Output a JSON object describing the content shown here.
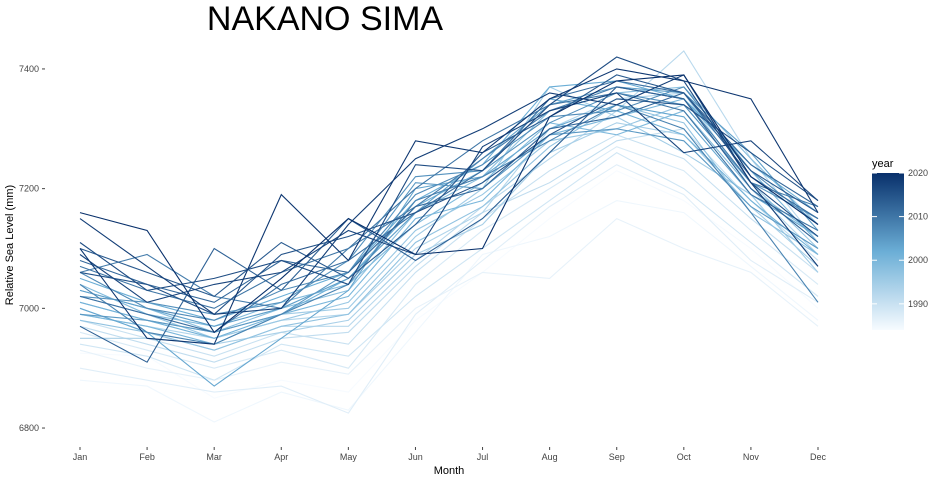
{
  "chart_data": {
    "type": "line",
    "title": "NAKANO SIMA",
    "xlabel": "Month",
    "ylabel": "Relative Sea Level (mm)",
    "categories": [
      "Jan",
      "Feb",
      "Mar",
      "Apr",
      "May",
      "Jun",
      "Jul",
      "Aug",
      "Sep",
      "Oct",
      "Nov",
      "Dec"
    ],
    "ylim": [
      6780,
      7440
    ],
    "yticks": [
      6800,
      7000,
      7200,
      7400
    ],
    "grid": false,
    "legend": {
      "title": "year",
      "placement": "right",
      "type": "colorbar",
      "range": [
        1984,
        2020
      ],
      "ticks": [
        1990,
        2000,
        2010,
        2020
      ],
      "color_low": "#f7fbff",
      "color_high": "#08306b"
    },
    "series": [
      {
        "year": 1984,
        "values": [
          6925,
          6920,
          6850,
          6880,
          6860,
          6980,
          7060,
          7150,
          7230,
          7180,
          7100,
          7000
        ]
      },
      {
        "year": 1985,
        "values": [
          6880,
          6870,
          6810,
          6860,
          6830,
          6960,
          7090,
          7120,
          7180,
          7160,
          7070,
          6980
        ]
      },
      {
        "year": 1986,
        "values": [
          6930,
          6900,
          6880,
          6910,
          6890,
          7000,
          7060,
          7050,
          7150,
          7100,
          7060,
          6970
        ]
      },
      {
        "year": 1987,
        "values": [
          6900,
          6880,
          6860,
          6870,
          6825,
          6990,
          7080,
          7170,
          7240,
          7190,
          7080,
          7010
        ]
      },
      {
        "year": 1988,
        "values": [
          6960,
          6930,
          6900,
          6930,
          6900,
          7040,
          7130,
          7200,
          7270,
          7230,
          7130,
          7040
        ]
      },
      {
        "year": 1989,
        "values": [
          6940,
          6920,
          6880,
          6940,
          6920,
          7020,
          7100,
          7180,
          7260,
          7200,
          7110,
          7020
        ]
      },
      {
        "year": 1990,
        "values": [
          6980,
          6950,
          6920,
          6960,
          6940,
          7060,
          7150,
          7230,
          7290,
          7250,
          7150,
          7060
        ]
      },
      {
        "year": 1991,
        "values": [
          6970,
          6940,
          6910,
          6950,
          6960,
          7070,
          7160,
          7210,
          7280,
          7300,
          7180,
          7080
        ]
      },
      {
        "year": 1992,
        "values": [
          7000,
          6960,
          6930,
          6970,
          6970,
          7080,
          7170,
          7250,
          7330,
          7430,
          7250,
          7110
        ]
      },
      {
        "year": 1993,
        "values": [
          6990,
          6970,
          6950,
          6980,
          6990,
          7100,
          7160,
          7300,
          7350,
          7360,
          7200,
          7090
        ]
      },
      {
        "year": 1994,
        "values": [
          6950,
          6950,
          6940,
          6960,
          6980,
          7090,
          7140,
          7260,
          7310,
          7290,
          7170,
          7070
        ]
      },
      {
        "year": 1995,
        "values": [
          7010,
          6980,
          6960,
          6990,
          7000,
          7120,
          7200,
          7370,
          7320,
          7260,
          7190,
          7060
        ]
      },
      {
        "year": 1996,
        "values": [
          7020,
          6990,
          6950,
          6980,
          7010,
          7130,
          7190,
          7280,
          7300,
          7340,
          7210,
          7100
        ]
      },
      {
        "year": 1997,
        "values": [
          6980,
          6960,
          6930,
          6970,
          6990,
          7110,
          7170,
          7270,
          7340,
          7310,
          7160,
          7090
        ]
      },
      {
        "year": 1998,
        "values": [
          7030,
          7000,
          6960,
          7000,
          7030,
          7160,
          7220,
          7330,
          7360,
          7370,
          7250,
          7140
        ]
      },
      {
        "year": 1999,
        "values": [
          7040,
          6990,
          6970,
          7010,
          7040,
          7140,
          7210,
          7310,
          7290,
          7330,
          7200,
          7120
        ]
      },
      {
        "year": 2000,
        "values": [
          6990,
          6970,
          6940,
          6990,
          7020,
          7150,
          7180,
          7290,
          7320,
          7350,
          7230,
          7110
        ]
      },
      {
        "year": 2001,
        "values": [
          7010,
          6980,
          6950,
          6990,
          7050,
          7170,
          7230,
          7350,
          7330,
          7290,
          7180,
          7090
        ]
      },
      {
        "year": 2002,
        "values": [
          7050,
          7010,
          6980,
          7020,
          7060,
          7180,
          7240,
          7370,
          7380,
          7350,
          7240,
          7160
        ]
      },
      {
        "year": 2003,
        "values": [
          7000,
          6960,
          6870,
          6950,
          7030,
          7200,
          7220,
          7300,
          7340,
          7320,
          7190,
          7120
        ]
      },
      {
        "year": 2004,
        "values": [
          7030,
          7000,
          6970,
          7000,
          7050,
          7160,
          7250,
          7340,
          7370,
          7360,
          7260,
          7130
        ]
      },
      {
        "year": 2005,
        "values": [
          6990,
          6980,
          6960,
          6990,
          7060,
          7210,
          7200,
          7290,
          7300,
          7280,
          7170,
          7100
        ]
      },
      {
        "year": 2006,
        "values": [
          7020,
          7010,
          6990,
          7010,
          7080,
          7220,
          7230,
          7310,
          7360,
          7340,
          7210,
          7150
        ]
      },
      {
        "year": 2007,
        "values": [
          7060,
          7000,
          6980,
          7030,
          7060,
          7190,
          7240,
          7320,
          7330,
          7370,
          7230,
          7140
        ]
      },
      {
        "year": 2008,
        "values": [
          7040,
          6960,
          6940,
          6990,
          7040,
          7180,
          7220,
          7280,
          7340,
          7300,
          7160,
          7010
        ]
      },
      {
        "year": 2009,
        "values": [
          7060,
          7090,
          7020,
          7000,
          7100,
          7170,
          7250,
          7330,
          7370,
          7350,
          7210,
          7170
        ]
      },
      {
        "year": 2010,
        "values": [
          7070,
          7030,
          7000,
          7060,
          7100,
          7200,
          7280,
          7340,
          7360,
          7330,
          7190,
          7130
        ]
      },
      {
        "year": 2011,
        "values": [
          7020,
          6990,
          6960,
          7040,
          7080,
          7160,
          7230,
          7350,
          7380,
          7360,
          7220,
          7150
        ]
      },
      {
        "year": 2012,
        "values": [
          7080,
          7040,
          7010,
          7080,
          7060,
          7170,
          7200,
          7300,
          7320,
          7360,
          7240,
          7170
        ]
      },
      {
        "year": 2013,
        "values": [
          6970,
          6910,
          7100,
          7030,
          7150,
          7080,
          7150,
          7260,
          7370,
          7350,
          7200,
          7110
        ]
      },
      {
        "year": 2014,
        "values": [
          7100,
          7060,
          7020,
          7110,
          7050,
          7140,
          7260,
          7320,
          7390,
          7360,
          7230,
          7160
        ]
      },
      {
        "year": 2015,
        "values": [
          7060,
          7040,
          6990,
          7090,
          7120,
          7160,
          7210,
          7290,
          7350,
          7340,
          7260,
          7180
        ]
      },
      {
        "year": 2016,
        "values": [
          7110,
          7030,
          7050,
          7080,
          7040,
          7240,
          7230,
          7340,
          7420,
          7380,
          7210,
          7120
        ]
      },
      {
        "year": 2017,
        "values": [
          7090,
          7010,
          7040,
          7060,
          7130,
          7090,
          7270,
          7330,
          7360,
          7260,
          7280,
          7180
        ]
      },
      {
        "year": 2018,
        "values": [
          7150,
          7070,
          6990,
          7000,
          7140,
          7250,
          7300,
          7360,
          7340,
          7390,
          7210,
          7070
        ]
      },
      {
        "year": 2019,
        "values": [
          7100,
          6950,
          6940,
          7190,
          7080,
          7280,
          7260,
          7350,
          7400,
          7380,
          7350,
          7160
        ]
      },
      {
        "year": 2020,
        "values": [
          7160,
          7130,
          6960,
          7050,
          7150,
          7090,
          7100,
          7320,
          7380,
          7390,
          7220,
          7140
        ]
      }
    ]
  }
}
